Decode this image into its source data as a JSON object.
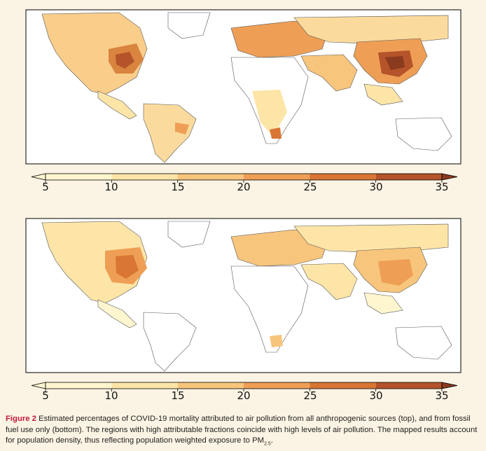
{
  "figure": {
    "label": "Figure 2",
    "caption_main": " Estimated percentages of COVID-19 mortality attributed to air pollution from all anthropogenic sources (top), and from fossil fuel use only (bottom). The regions with high attributable fractions coincide with high levels of air pollution. The mapped results account for population density, thus reflecting population weighted exposure to PM",
    "caption_sub": "2.5",
    "caption_end": "."
  },
  "colorbar": {
    "ticks": [
      "5",
      "10",
      "15",
      "20",
      "25",
      "30",
      "35"
    ],
    "colors": [
      "#fff6cf",
      "#fde5a8",
      "#f8c57c",
      "#ee9f55",
      "#d97635",
      "#b5532a",
      "#8a3a1f"
    ]
  },
  "chart_data": [
    {
      "type": "heatmap",
      "panel": "top",
      "description_source": "all anthropogenic sources",
      "colorbar_range": [
        5,
        35
      ],
      "colorbar_ticks": [
        5,
        10,
        15,
        20,
        25,
        30,
        35
      ]
    },
    {
      "type": "heatmap",
      "panel": "bottom",
      "description_source": "fossil fuel use only",
      "colorbar_range": [
        5,
        35
      ],
      "colorbar_ticks": [
        5,
        10,
        15,
        20,
        25,
        30,
        35
      ]
    }
  ]
}
